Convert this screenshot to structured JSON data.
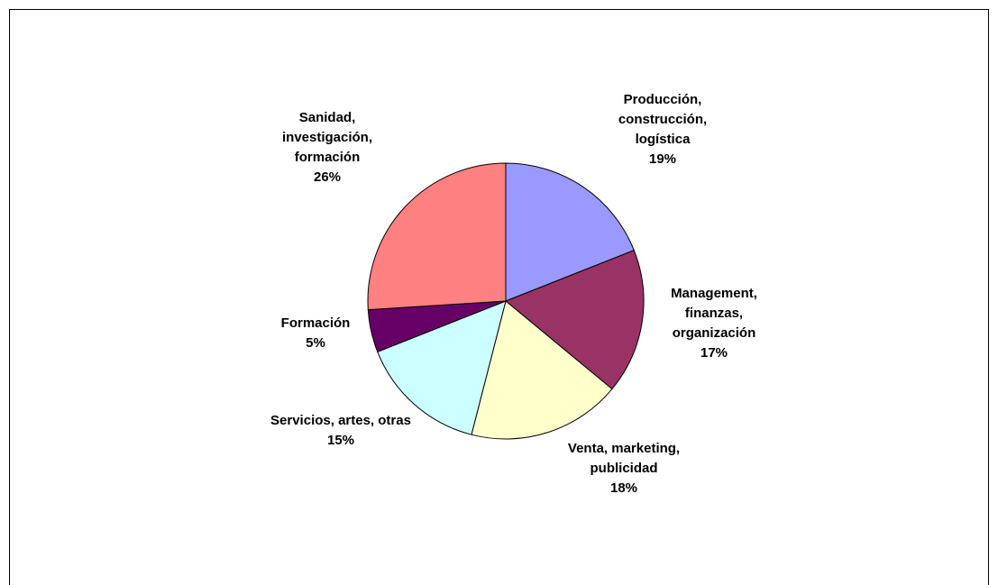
{
  "chart_data": {
    "type": "pie",
    "categories": [
      "Producción, construcción, logística",
      "Management, finanzas, organización",
      "Venta, marketing, publicidad",
      "Servicios, artes, otras",
      "Formación",
      "Sanidad, investigación, formación"
    ],
    "values": [
      19,
      17,
      18,
      15,
      5,
      26
    ],
    "value_labels": [
      "19%",
      "17%",
      "18%",
      "15%",
      "5%",
      "26%"
    ],
    "colors": [
      "#9999FF",
      "#993366",
      "#FFFFCC",
      "#CCFFFF",
      "#660066",
      "#FF8080"
    ]
  }
}
